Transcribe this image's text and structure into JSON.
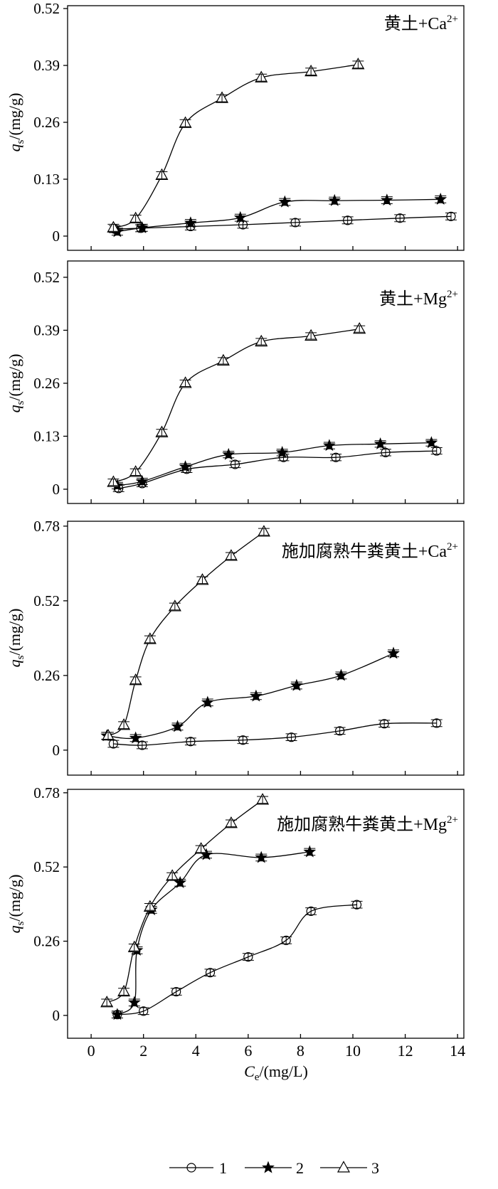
{
  "style": {
    "ink": "#000000",
    "background": "#ffffff"
  },
  "legend": {
    "position": "bottom-center",
    "items": [
      {
        "label": "1",
        "marker": "open-circle"
      },
      {
        "label": "2",
        "marker": "filled-star"
      },
      {
        "label": "3",
        "marker": "open-triangle"
      }
    ]
  },
  "chart_data": [
    {
      "type": "line",
      "title": "黄土+Ca",
      "title_sup": "2+",
      "ylabel": {
        "var": "q",
        "sub": "s",
        "unit": "/(mg/g)"
      },
      "xlim": [
        -0.9,
        14.24
      ],
      "ylim": [
        -0.0325,
        0.5265
      ],
      "xticks": [
        0,
        2,
        4,
        6,
        8,
        10,
        12,
        14
      ],
      "yticks": [
        0,
        0.13,
        0.26,
        0.39,
        0.52
      ],
      "show_xtick_labels": false,
      "grid": false,
      "error_bars": true,
      "yerr": 0.008,
      "series": [
        {
          "name": "1",
          "marker": "open-circle",
          "x": [
            0.9,
            1.9,
            3.8,
            5.8,
            7.8,
            9.8,
            11.8,
            13.75
          ],
          "y": [
            0.016,
            0.018,
            0.022,
            0.026,
            0.031,
            0.036,
            0.041,
            0.045
          ]
        },
        {
          "name": "2",
          "marker": "filled-star",
          "x": [
            1.0,
            1.95,
            3.8,
            5.7,
            7.4,
            9.3,
            11.3,
            13.35
          ],
          "y": [
            0.01,
            0.019,
            0.03,
            0.042,
            0.078,
            0.081,
            0.082,
            0.084
          ]
        },
        {
          "name": "3",
          "marker": "open-triangle",
          "x": [
            0.85,
            1.7,
            2.7,
            3.6,
            5.0,
            6.5,
            8.4,
            10.2
          ],
          "y": [
            0.019,
            0.04,
            0.139,
            0.258,
            0.315,
            0.362,
            0.376,
            0.392
          ]
        }
      ]
    },
    {
      "type": "line",
      "title": "黄土+Mg",
      "title_sup": "2+",
      "ylabel": {
        "var": "q",
        "sub": "s",
        "unit": "/(mg/g)"
      },
      "xlim": [
        -0.9,
        14.24
      ],
      "ylim": [
        -0.035,
        0.56
      ],
      "xticks": [
        0,
        2,
        4,
        6,
        8,
        10,
        12,
        14
      ],
      "yticks": [
        0,
        0.13,
        0.26,
        0.39,
        0.52
      ],
      "show_xtick_labels": false,
      "grid": false,
      "error_bars": true,
      "yerr": 0.008,
      "series": [
        {
          "name": "1",
          "marker": "open-circle",
          "x": [
            1.05,
            1.95,
            3.65,
            5.5,
            7.35,
            9.35,
            11.25,
            13.2
          ],
          "y": [
            0.002,
            0.014,
            0.049,
            0.061,
            0.078,
            0.078,
            0.09,
            0.094
          ]
        },
        {
          "name": "2",
          "marker": "filled-star",
          "x": [
            1.0,
            1.95,
            3.6,
            5.25,
            7.3,
            9.1,
            11.05,
            13.0
          ],
          "y": [
            0.009,
            0.019,
            0.055,
            0.085,
            0.09,
            0.107,
            0.111,
            0.114
          ]
        },
        {
          "name": "3",
          "marker": "open-triangle",
          "x": [
            0.85,
            1.7,
            2.7,
            3.6,
            5.05,
            6.5,
            8.4,
            10.25
          ],
          "y": [
            0.017,
            0.042,
            0.139,
            0.26,
            0.315,
            0.362,
            0.376,
            0.393
          ]
        }
      ]
    },
    {
      "type": "line",
      "title": "施加腐熟牛粪黄土+Ca",
      "title_sup": "2+",
      "ylabel": {
        "var": "q",
        "sub": "s",
        "unit": "/(mg/g)"
      },
      "xlim": [
        -0.9,
        14.24
      ],
      "ylim": [
        -0.087,
        0.797
      ],
      "xticks": [
        0,
        2,
        4,
        6,
        8,
        10,
        12,
        14
      ],
      "yticks": [
        0,
        0.26,
        0.52,
        0.78
      ],
      "show_xtick_labels": false,
      "grid": false,
      "error_bars": true,
      "yerr": 0.012,
      "series": [
        {
          "name": "1",
          "marker": "open-circle",
          "x": [
            0.85,
            1.95,
            3.8,
            5.8,
            7.65,
            9.5,
            11.2,
            13.2
          ],
          "y": [
            0.022,
            0.017,
            0.03,
            0.035,
            0.045,
            0.067,
            0.092,
            0.094
          ]
        },
        {
          "name": "2",
          "marker": "filled-star",
          "x": [
            0.6,
            1.7,
            3.3,
            4.45,
            6.3,
            7.85,
            9.55,
            11.55
          ],
          "y": [
            0.05,
            0.042,
            0.082,
            0.166,
            0.188,
            0.225,
            0.26,
            0.337
          ]
        },
        {
          "name": "3",
          "marker": "open-triangle",
          "x": [
            0.65,
            1.25,
            1.7,
            2.25,
            3.2,
            4.25,
            5.35,
            6.6
          ],
          "y": [
            0.05,
            0.087,
            0.243,
            0.386,
            0.5,
            0.592,
            0.676,
            0.76
          ]
        }
      ]
    },
    {
      "type": "line",
      "title": "施加腐熟牛粪黄土+Mg",
      "title_sup": "2+",
      "ylabel": {
        "var": "q",
        "sub": "s",
        "unit": "/(mg/g)"
      },
      "xlabel": {
        "var": "C",
        "sub": "e",
        "unit": "/(mg/L)"
      },
      "xlim": [
        -0.9,
        14.24
      ],
      "ylim": [
        -0.08,
        0.792
      ],
      "xticks": [
        0,
        2,
        4,
        6,
        8,
        10,
        12,
        14
      ],
      "yticks": [
        0,
        0.26,
        0.52,
        0.78
      ],
      "show_xtick_labels": true,
      "grid": false,
      "error_bars": true,
      "yerr": 0.012,
      "series": [
        {
          "name": "1",
          "marker": "open-circle",
          "x": [
            1.0,
            2.0,
            3.25,
            4.55,
            6.0,
            7.45,
            8.4,
            10.15
          ],
          "y": [
            0.003,
            0.015,
            0.083,
            0.15,
            0.205,
            0.263,
            0.365,
            0.388
          ]
        },
        {
          "name": "2",
          "marker": "filled-star",
          "x": [
            1.0,
            1.65,
            1.75,
            2.3,
            3.4,
            4.4,
            6.5,
            8.35
          ],
          "y": [
            0.003,
            0.045,
            0.228,
            0.37,
            0.465,
            0.563,
            0.553,
            0.573
          ]
        },
        {
          "name": "3",
          "marker": "open-triangle",
          "x": [
            0.6,
            1.25,
            1.65,
            2.25,
            3.1,
            4.2,
            5.35,
            6.55
          ],
          "y": [
            0.045,
            0.083,
            0.238,
            0.38,
            0.488,
            0.583,
            0.673,
            0.755
          ]
        }
      ]
    }
  ]
}
